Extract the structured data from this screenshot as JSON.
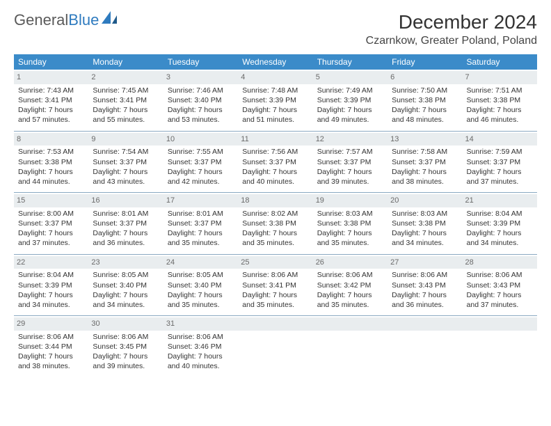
{
  "logo": {
    "text1": "General",
    "text2": "Blue"
  },
  "title": "December 2024",
  "location": "Czarnkow, Greater Poland, Poland",
  "colors": {
    "header_bg": "#3b8bc9",
    "header_fg": "#ffffff",
    "daynum_bg": "#e9edef",
    "daynum_fg": "#6a6a6a",
    "rule": "#8aa9c2",
    "text": "#333333",
    "logo_gray": "#5a5a5a",
    "logo_blue": "#2f7bbf"
  },
  "day_headers": [
    "Sunday",
    "Monday",
    "Tuesday",
    "Wednesday",
    "Thursday",
    "Friday",
    "Saturday"
  ],
  "weeks": [
    [
      {
        "num": "1",
        "sunrise": "Sunrise: 7:43 AM",
        "sunset": "Sunset: 3:41 PM",
        "daylight1": "Daylight: 7 hours",
        "daylight2": "and 57 minutes."
      },
      {
        "num": "2",
        "sunrise": "Sunrise: 7:45 AM",
        "sunset": "Sunset: 3:41 PM",
        "daylight1": "Daylight: 7 hours",
        "daylight2": "and 55 minutes."
      },
      {
        "num": "3",
        "sunrise": "Sunrise: 7:46 AM",
        "sunset": "Sunset: 3:40 PM",
        "daylight1": "Daylight: 7 hours",
        "daylight2": "and 53 minutes."
      },
      {
        "num": "4",
        "sunrise": "Sunrise: 7:48 AM",
        "sunset": "Sunset: 3:39 PM",
        "daylight1": "Daylight: 7 hours",
        "daylight2": "and 51 minutes."
      },
      {
        "num": "5",
        "sunrise": "Sunrise: 7:49 AM",
        "sunset": "Sunset: 3:39 PM",
        "daylight1": "Daylight: 7 hours",
        "daylight2": "and 49 minutes."
      },
      {
        "num": "6",
        "sunrise": "Sunrise: 7:50 AM",
        "sunset": "Sunset: 3:38 PM",
        "daylight1": "Daylight: 7 hours",
        "daylight2": "and 48 minutes."
      },
      {
        "num": "7",
        "sunrise": "Sunrise: 7:51 AM",
        "sunset": "Sunset: 3:38 PM",
        "daylight1": "Daylight: 7 hours",
        "daylight2": "and 46 minutes."
      }
    ],
    [
      {
        "num": "8",
        "sunrise": "Sunrise: 7:53 AM",
        "sunset": "Sunset: 3:38 PM",
        "daylight1": "Daylight: 7 hours",
        "daylight2": "and 44 minutes."
      },
      {
        "num": "9",
        "sunrise": "Sunrise: 7:54 AM",
        "sunset": "Sunset: 3:37 PM",
        "daylight1": "Daylight: 7 hours",
        "daylight2": "and 43 minutes."
      },
      {
        "num": "10",
        "sunrise": "Sunrise: 7:55 AM",
        "sunset": "Sunset: 3:37 PM",
        "daylight1": "Daylight: 7 hours",
        "daylight2": "and 42 minutes."
      },
      {
        "num": "11",
        "sunrise": "Sunrise: 7:56 AM",
        "sunset": "Sunset: 3:37 PM",
        "daylight1": "Daylight: 7 hours",
        "daylight2": "and 40 minutes."
      },
      {
        "num": "12",
        "sunrise": "Sunrise: 7:57 AM",
        "sunset": "Sunset: 3:37 PM",
        "daylight1": "Daylight: 7 hours",
        "daylight2": "and 39 minutes."
      },
      {
        "num": "13",
        "sunrise": "Sunrise: 7:58 AM",
        "sunset": "Sunset: 3:37 PM",
        "daylight1": "Daylight: 7 hours",
        "daylight2": "and 38 minutes."
      },
      {
        "num": "14",
        "sunrise": "Sunrise: 7:59 AM",
        "sunset": "Sunset: 3:37 PM",
        "daylight1": "Daylight: 7 hours",
        "daylight2": "and 37 minutes."
      }
    ],
    [
      {
        "num": "15",
        "sunrise": "Sunrise: 8:00 AM",
        "sunset": "Sunset: 3:37 PM",
        "daylight1": "Daylight: 7 hours",
        "daylight2": "and 37 minutes."
      },
      {
        "num": "16",
        "sunrise": "Sunrise: 8:01 AM",
        "sunset": "Sunset: 3:37 PM",
        "daylight1": "Daylight: 7 hours",
        "daylight2": "and 36 minutes."
      },
      {
        "num": "17",
        "sunrise": "Sunrise: 8:01 AM",
        "sunset": "Sunset: 3:37 PM",
        "daylight1": "Daylight: 7 hours",
        "daylight2": "and 35 minutes."
      },
      {
        "num": "18",
        "sunrise": "Sunrise: 8:02 AM",
        "sunset": "Sunset: 3:38 PM",
        "daylight1": "Daylight: 7 hours",
        "daylight2": "and 35 minutes."
      },
      {
        "num": "19",
        "sunrise": "Sunrise: 8:03 AM",
        "sunset": "Sunset: 3:38 PM",
        "daylight1": "Daylight: 7 hours",
        "daylight2": "and 35 minutes."
      },
      {
        "num": "20",
        "sunrise": "Sunrise: 8:03 AM",
        "sunset": "Sunset: 3:38 PM",
        "daylight1": "Daylight: 7 hours",
        "daylight2": "and 34 minutes."
      },
      {
        "num": "21",
        "sunrise": "Sunrise: 8:04 AM",
        "sunset": "Sunset: 3:39 PM",
        "daylight1": "Daylight: 7 hours",
        "daylight2": "and 34 minutes."
      }
    ],
    [
      {
        "num": "22",
        "sunrise": "Sunrise: 8:04 AM",
        "sunset": "Sunset: 3:39 PM",
        "daylight1": "Daylight: 7 hours",
        "daylight2": "and 34 minutes."
      },
      {
        "num": "23",
        "sunrise": "Sunrise: 8:05 AM",
        "sunset": "Sunset: 3:40 PM",
        "daylight1": "Daylight: 7 hours",
        "daylight2": "and 34 minutes."
      },
      {
        "num": "24",
        "sunrise": "Sunrise: 8:05 AM",
        "sunset": "Sunset: 3:40 PM",
        "daylight1": "Daylight: 7 hours",
        "daylight2": "and 35 minutes."
      },
      {
        "num": "25",
        "sunrise": "Sunrise: 8:06 AM",
        "sunset": "Sunset: 3:41 PM",
        "daylight1": "Daylight: 7 hours",
        "daylight2": "and 35 minutes."
      },
      {
        "num": "26",
        "sunrise": "Sunrise: 8:06 AM",
        "sunset": "Sunset: 3:42 PM",
        "daylight1": "Daylight: 7 hours",
        "daylight2": "and 35 minutes."
      },
      {
        "num": "27",
        "sunrise": "Sunrise: 8:06 AM",
        "sunset": "Sunset: 3:43 PM",
        "daylight1": "Daylight: 7 hours",
        "daylight2": "and 36 minutes."
      },
      {
        "num": "28",
        "sunrise": "Sunrise: 8:06 AM",
        "sunset": "Sunset: 3:43 PM",
        "daylight1": "Daylight: 7 hours",
        "daylight2": "and 37 minutes."
      }
    ],
    [
      {
        "num": "29",
        "sunrise": "Sunrise: 8:06 AM",
        "sunset": "Sunset: 3:44 PM",
        "daylight1": "Daylight: 7 hours",
        "daylight2": "and 38 minutes."
      },
      {
        "num": "30",
        "sunrise": "Sunrise: 8:06 AM",
        "sunset": "Sunset: 3:45 PM",
        "daylight1": "Daylight: 7 hours",
        "daylight2": "and 39 minutes."
      },
      {
        "num": "31",
        "sunrise": "Sunrise: 8:06 AM",
        "sunset": "Sunset: 3:46 PM",
        "daylight1": "Daylight: 7 hours",
        "daylight2": "and 40 minutes."
      },
      {
        "empty": true
      },
      {
        "empty": true
      },
      {
        "empty": true
      },
      {
        "empty": true
      }
    ]
  ]
}
